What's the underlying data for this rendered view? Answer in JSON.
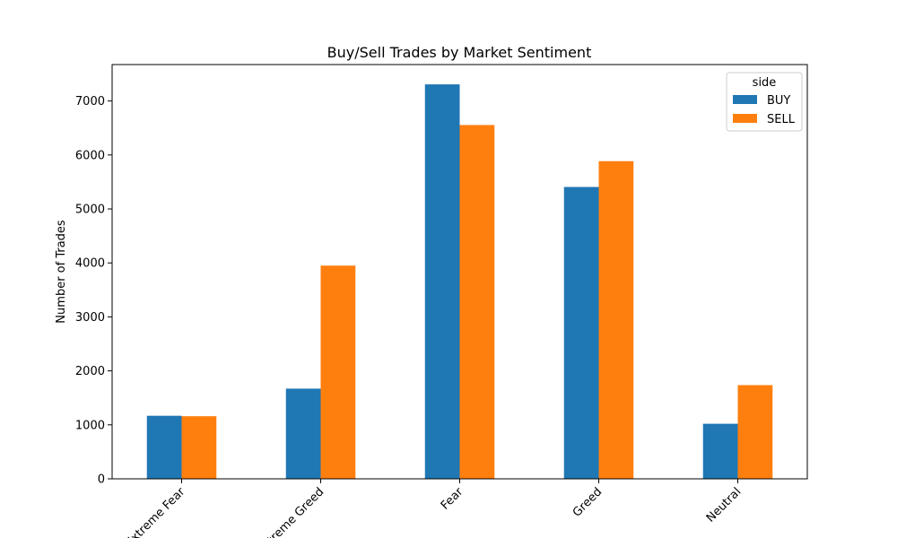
{
  "chart_data": {
    "type": "bar",
    "title": "Buy/Sell Trades by Market Sentiment",
    "xlabel": "",
    "ylabel": "Number of Trades",
    "categories": [
      "Extreme Fear",
      "Extreme Greed",
      "Fear",
      "Greed",
      "Neutral"
    ],
    "series": [
      {
        "name": "BUY",
        "color": "#1f77b4",
        "values": [
          1168,
          1671,
          7308,
          5407,
          1020
        ]
      },
      {
        "name": "SELL",
        "color": "#ff7f0e",
        "values": [
          1160,
          3950,
          6555,
          5885,
          1736
        ]
      }
    ],
    "ylim": [
      0,
      7675
    ],
    "yticks": [
      0,
      1000,
      2000,
      3000,
      4000,
      5000,
      6000,
      7000
    ],
    "legend": {
      "title": "side",
      "placement": "top-right"
    },
    "grid": false
  }
}
